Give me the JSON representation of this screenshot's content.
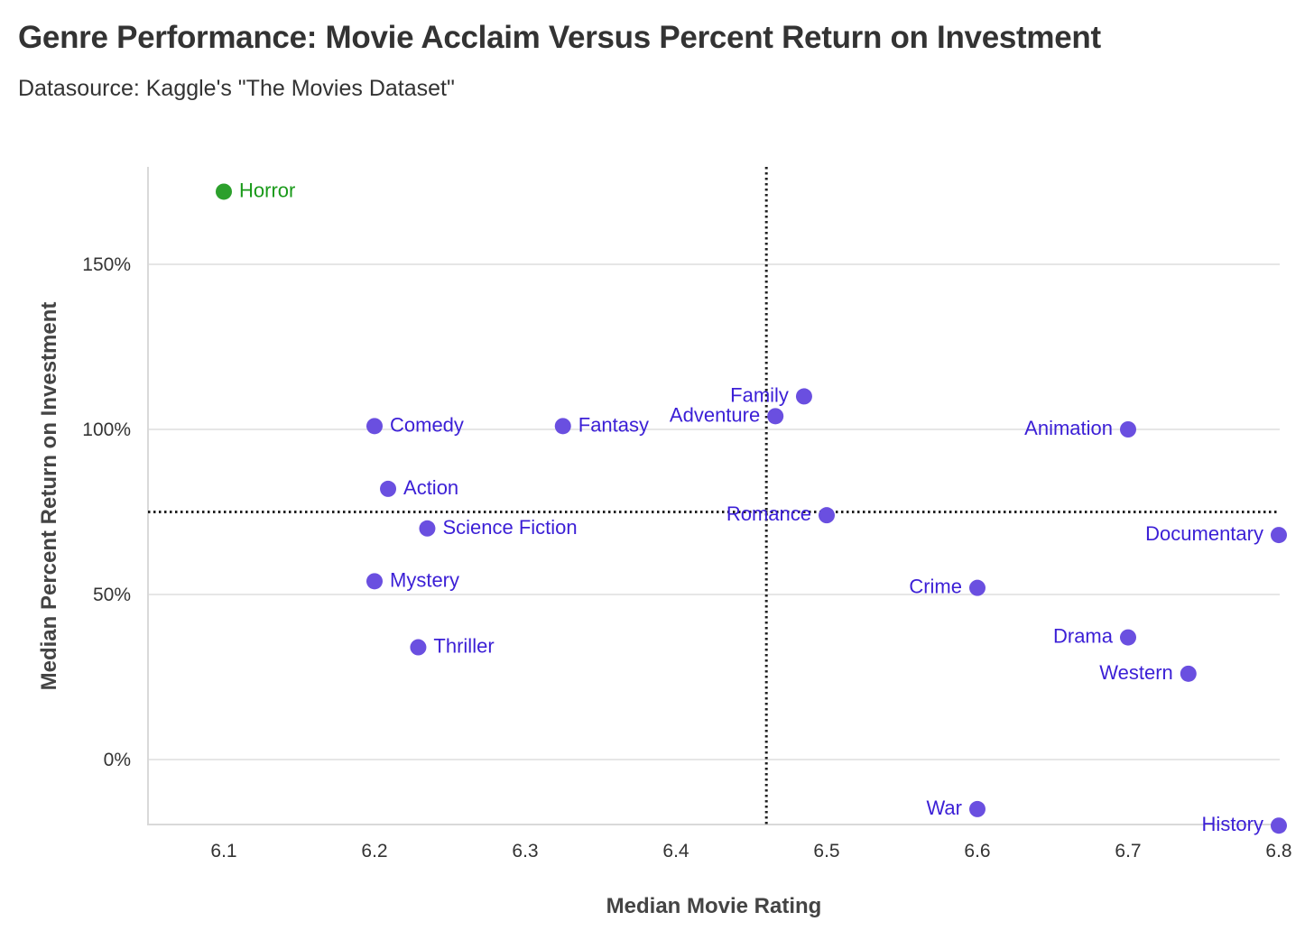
{
  "title": "Genre Performance: Movie Acclaim Versus Percent Return on Investment",
  "subtitle": "Datasource: Kaggle's \"The Movies Dataset\"",
  "colors": {
    "default_point": "#6a4fe0",
    "default_label": "#3b1fd6",
    "highlight_point": "#2ca02c",
    "highlight_label": "#1a9a1a",
    "grid": "#e6e6e6",
    "axis": "#d9d9d9",
    "reference_line": "#222222"
  },
  "chart_data": {
    "type": "scatter",
    "title": "Genre Performance: Movie Acclaim Versus Percent Return on Investment",
    "subtitle": "Datasource: Kaggle's \"The Movies Dataset\"",
    "xlabel": "Median Movie Rating",
    "ylabel": "Median Percent Return on Investment",
    "xlim": [
      6.05,
      6.8
    ],
    "ylim": [
      -20,
      180
    ],
    "x_ticks": [
      6.1,
      6.2,
      6.3,
      6.4,
      6.5,
      6.6,
      6.7,
      6.8
    ],
    "x_tick_labels": [
      "6.1",
      "6.2",
      "6.3",
      "6.4",
      "6.5",
      "6.6",
      "6.7",
      "6.8"
    ],
    "y_ticks": [
      0,
      50,
      100,
      150
    ],
    "y_tick_labels": [
      "0%",
      "50%",
      "100%",
      "150%"
    ],
    "grid": "horizontal",
    "reference_lines": {
      "x": 6.46,
      "y": 75,
      "style": "dotted"
    },
    "points": [
      {
        "label": "Horror",
        "x": 6.1,
        "y": 172,
        "highlight": true,
        "label_side": "right"
      },
      {
        "label": "Comedy",
        "x": 6.2,
        "y": 101,
        "label_side": "right"
      },
      {
        "label": "Fantasy",
        "x": 6.325,
        "y": 101,
        "label_side": "right"
      },
      {
        "label": "Family",
        "x": 6.485,
        "y": 110,
        "label_side": "left"
      },
      {
        "label": "Adventure",
        "x": 6.466,
        "y": 104,
        "label_side": "left"
      },
      {
        "label": "Animation",
        "x": 6.7,
        "y": 100,
        "label_side": "left"
      },
      {
        "label": "Action",
        "x": 6.209,
        "y": 82,
        "label_side": "right"
      },
      {
        "label": "Science Fiction",
        "x": 6.235,
        "y": 70,
        "label_side": "right"
      },
      {
        "label": "Romance",
        "x": 6.5,
        "y": 74,
        "label_side": "left"
      },
      {
        "label": "Documentary",
        "x": 6.8,
        "y": 68,
        "label_side": "left"
      },
      {
        "label": "Mystery",
        "x": 6.2,
        "y": 54,
        "label_side": "right"
      },
      {
        "label": "Crime",
        "x": 6.6,
        "y": 52,
        "label_side": "left"
      },
      {
        "label": "Drama",
        "x": 6.7,
        "y": 37,
        "label_side": "left"
      },
      {
        "label": "Thriller",
        "x": 6.229,
        "y": 34,
        "label_side": "right"
      },
      {
        "label": "Western",
        "x": 6.74,
        "y": 26,
        "label_side": "left"
      },
      {
        "label": "War",
        "x": 6.6,
        "y": -15,
        "label_side": "left"
      },
      {
        "label": "History",
        "x": 6.8,
        "y": -20,
        "label_side": "left"
      }
    ]
  }
}
